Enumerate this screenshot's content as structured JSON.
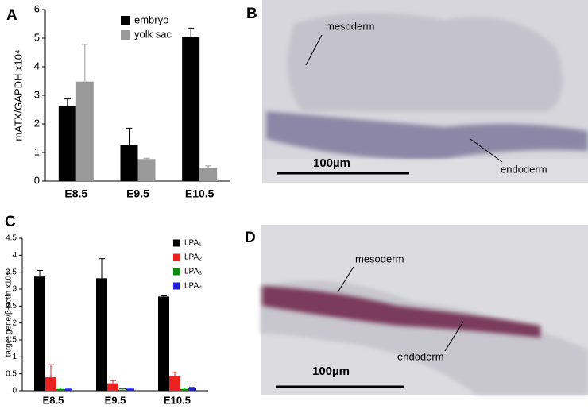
{
  "chart_data": [
    {
      "type": "bar",
      "panel_label": "A",
      "ylabel": "mATX/GAPDH x10⁴",
      "categories": [
        "E8.5",
        "E9.5",
        "E10.5"
      ],
      "series": [
        {
          "name": "embryo",
          "color": "#000000",
          "values": [
            2.62,
            1.25,
            5.05
          ],
          "errors": [
            0.25,
            0.6,
            0.3
          ]
        },
        {
          "name": "yolk sac",
          "color": "#999999",
          "values": [
            3.48,
            0.77,
            0.47
          ],
          "errors": [
            1.3,
            0.03,
            0.06
          ]
        }
      ],
      "ylim": [
        0,
        6
      ],
      "yticks": [
        0,
        1,
        2,
        3,
        4,
        5,
        6
      ],
      "grid": false,
      "legend": "upper right"
    },
    {
      "type": "bar",
      "panel_label": "C",
      "ylabel": "target gene/β-actin x10⁴",
      "categories": [
        "E8.5",
        "E9.5",
        "E10.5"
      ],
      "series": [
        {
          "name": "LPA₁",
          "color": "#000000",
          "values": [
            3.37,
            3.32,
            2.78
          ],
          "errors": [
            0.18,
            0.58,
            0.02
          ]
        },
        {
          "name": "LPA₂",
          "color": "#ee2020",
          "values": [
            0.4,
            0.22,
            0.43
          ],
          "errors": [
            0.37,
            0.08,
            0.12
          ]
        },
        {
          "name": "LPA₃",
          "color": "#118811",
          "values": [
            0.05,
            0.03,
            0.05
          ],
          "errors": [
            0.03,
            0.03,
            0.03
          ]
        },
        {
          "name": "LPA₄",
          "color": "#2222dd",
          "values": [
            0.05,
            0.06,
            0.08
          ],
          "errors": [
            0.02,
            0.02,
            0.02
          ]
        }
      ],
      "ylim": [
        0,
        4.5
      ],
      "yticks": [
        0,
        0.5,
        1,
        1.5,
        2,
        2.5,
        3,
        3.5,
        4,
        4.5
      ],
      "grid": false,
      "legend": "upper right"
    }
  ],
  "panels": [
    {
      "label": "B",
      "annotations": [
        "mesoderm",
        "endoderm"
      ],
      "scale_bar": "100µm"
    },
    {
      "label": "D",
      "annotations": [
        "mesoderm",
        "endoderm"
      ],
      "scale_bar": "100µm"
    }
  ]
}
